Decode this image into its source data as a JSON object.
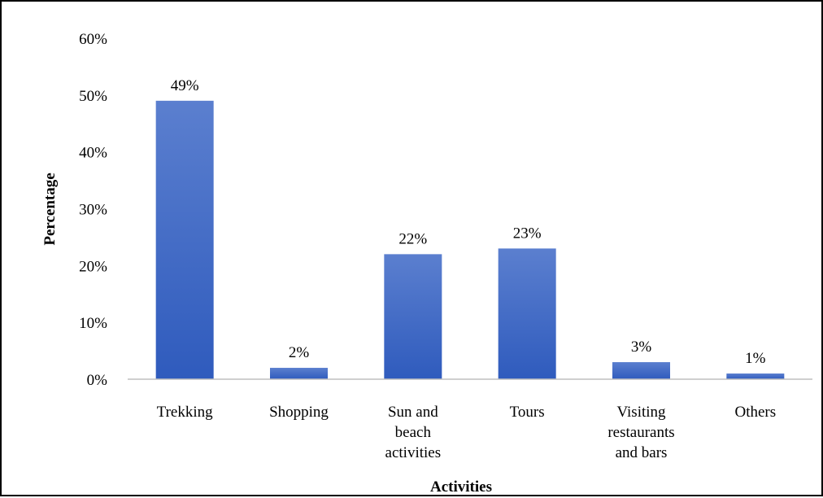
{
  "chart_data": {
    "type": "bar",
    "title": "",
    "xlabel": "Activities",
    "ylabel": "Percentage",
    "categories": [
      [
        "Trekking"
      ],
      [
        "Shopping"
      ],
      [
        "Sun and",
        "beach",
        "activities"
      ],
      [
        "Tours"
      ],
      [
        "Visiting",
        "restaurants",
        "and bars"
      ],
      [
        "Others"
      ]
    ],
    "values": [
      49,
      2,
      22,
      23,
      3,
      1
    ],
    "data_labels": [
      "49%",
      "2%",
      "22%",
      "23%",
      "3%",
      "1%"
    ],
    "ylim": [
      0,
      60
    ],
    "yticks": [
      0,
      10,
      20,
      30,
      40,
      50,
      60
    ],
    "ytick_labels": [
      "0%",
      "10%",
      "20%",
      "30%",
      "40%",
      "50%",
      "60%"
    ],
    "grid": false,
    "legend": "none",
    "bar_color_top": "#5b7fcf",
    "bar_color_bottom": "#2f5bbd",
    "axis_color": "#bfbfbf"
  }
}
